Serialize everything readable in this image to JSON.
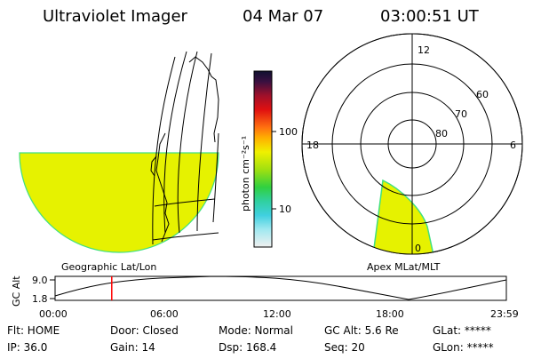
{
  "header": {
    "instrument": "Ultraviolet Imager",
    "date": "04 Mar 07",
    "time": "03:00:51 UT"
  },
  "colorbar": {
    "unit_label": "photon cm⁻²s⁻¹",
    "ticks": [
      "100",
      "10"
    ]
  },
  "polar": {
    "mlt_labels": [
      "12",
      "18",
      "6",
      "0"
    ],
    "lat_labels": [
      "60",
      "70",
      "80"
    ]
  },
  "map_labels": {
    "geo": "Geographic Lat/Lon",
    "apex": "Apex MLat/MLT"
  },
  "altitude_plot": {
    "axis_label": "GC Alt",
    "y_ticks": [
      "9.0",
      "1.8"
    ],
    "x_ticks": [
      "00:00",
      "06:00",
      "12:00",
      "18:00",
      "23:59"
    ],
    "current_time_hours": 3.014
  },
  "status": {
    "flt": "Flt: HOME",
    "door": "Door: Closed",
    "mode": "Mode: Normal",
    "gcalt": "GC Alt: 5.6 Re",
    "glat": "GLat: *****",
    "ip": "IP: 36.0",
    "gain": "Gain: 14",
    "dsp": "Dsp:  168.4",
    "seq": "Seq: 20",
    "glon": "GLon: *****"
  },
  "colors": {
    "fill": "#e6f200",
    "edge": "#40e080",
    "marker": "#ff0000"
  }
}
